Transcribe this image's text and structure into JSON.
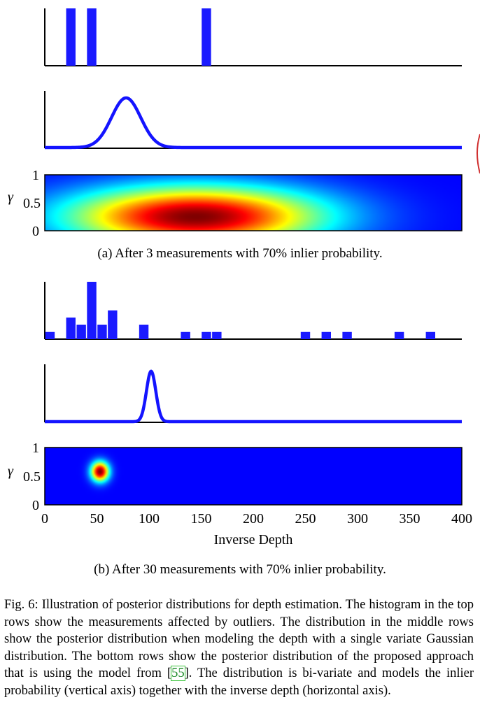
{
  "figure": {
    "label": "Fig. 6:",
    "panels": [
      {
        "id": "a",
        "caption": "(a) After 3 measurements with 70% inlier probability.",
        "histogram": {
          "bin_width": 10,
          "bins": [
            25,
            45,
            155
          ],
          "counts": [
            1,
            1,
            1
          ],
          "max_count": 1
        },
        "gaussian": {
          "mean": 78,
          "sigma": 14
        },
        "heatmap": {
          "depth_mean": 145,
          "depth_sigma": 85,
          "gamma_mean": 0.25,
          "gamma_sigma": 0.38
        },
        "ylabel": "γ",
        "yticks": [
          "0",
          "0.5",
          "1"
        ]
      },
      {
        "id": "b",
        "caption": "(b) After 30 measurements with 70% inlier probability.",
        "histogram": {
          "bin_width": 10,
          "bins": [
            5,
            25,
            35,
            45,
            55,
            65,
            95,
            135,
            155,
            165,
            250,
            270,
            290,
            340,
            370
          ],
          "counts": [
            1,
            3,
            2,
            8,
            2,
            4,
            2,
            1,
            1,
            1,
            1,
            1,
            1,
            1,
            1
          ],
          "max_count": 8
        },
        "gaussian": {
          "mean": 102,
          "sigma": 4.5
        },
        "heatmap": {
          "depth_mean": 53,
          "depth_sigma": 6,
          "gamma_mean": 0.58,
          "gamma_sigma": 0.12
        },
        "ylabel": "γ",
        "yticks": [
          "0",
          "0.5",
          "1"
        ]
      }
    ],
    "xaxis": {
      "label": "Inverse Depth",
      "min": 0,
      "max": 400,
      "ticks": [
        "0",
        "50",
        "100",
        "150",
        "200",
        "250",
        "300",
        "350",
        "400"
      ]
    },
    "caption": {
      "part1": "Illustration of posterior distributions for depth estimation. The histogram in the top rows show the measurements affected by outliers. The distribution in the middle rows show the posterior distribution when modeling the depth with a single variate Gaussian distribution. The bottom rows show the posterior distribution of the proposed approach that is using the model from [",
      "cite": "55",
      "part2": "]. The distribution is bi-variate and models the inlier probability (vertical axis) together with the inverse depth (horizontal axis)."
    },
    "colors": {
      "bar": "#1a1aff",
      "curve": "#1414ff",
      "axis": "#000000"
    }
  }
}
